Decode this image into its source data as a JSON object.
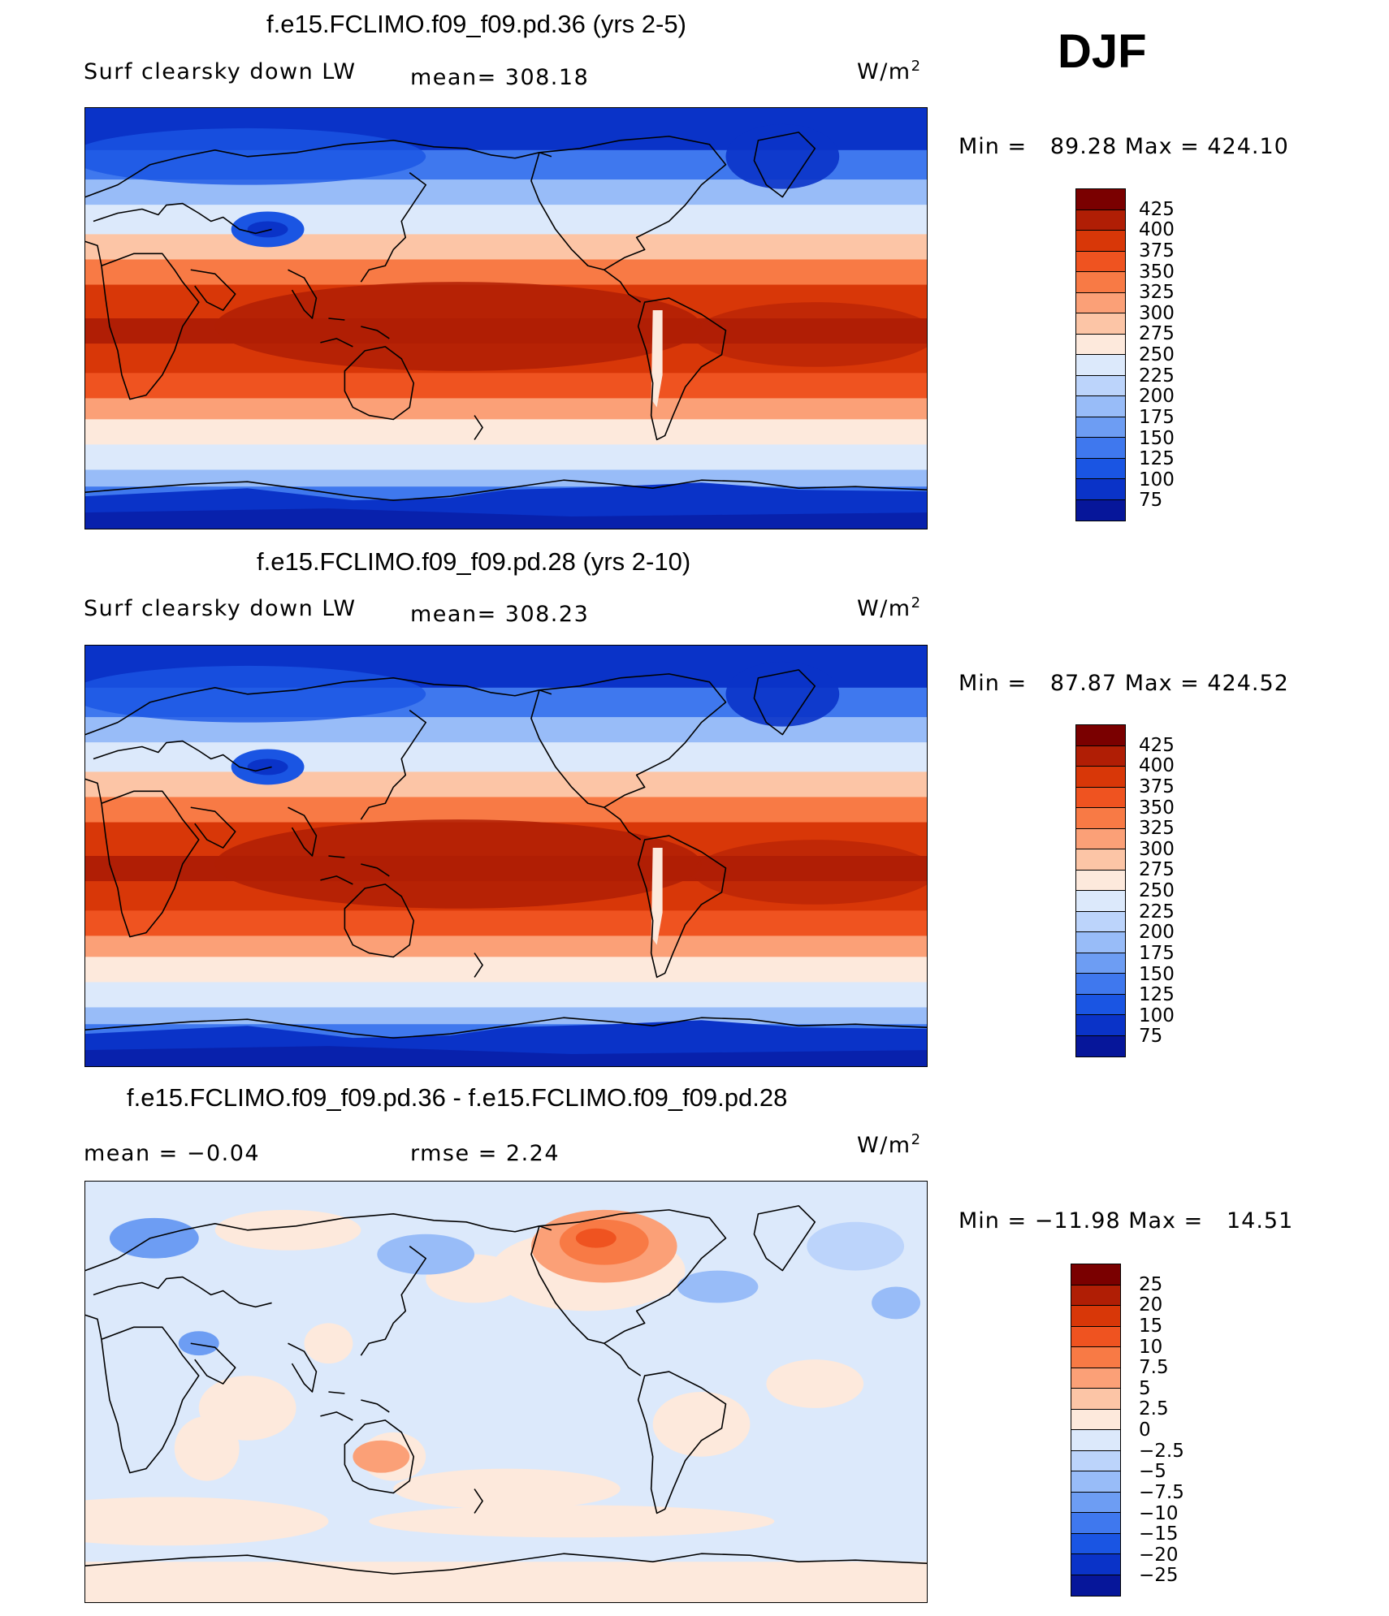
{
  "season": "DJF",
  "units": "W/m",
  "units_sup": "2",
  "panels": [
    {
      "title": "f.e15.FCLIMO.f09_f09.pd.36 (yrs 2-5)",
      "left_label": "Surf clearsky down LW",
      "center_label": "mean=  308.18",
      "minmax": "Min =   89.28 Max = 424.10",
      "levels": [
        "425",
        "400",
        "375",
        "350",
        "325",
        "300",
        "275",
        "250",
        "225",
        "200",
        "175",
        "150",
        "125",
        "100",
        "75"
      ],
      "colors": [
        "#7a0000",
        "#b01e05",
        "#d83708",
        "#ef5320",
        "#f87a45",
        "#fba077",
        "#fcc5a6",
        "#fde9dc",
        "#dce9fb",
        "#bcd4fb",
        "#98bcf8",
        "#6d9df3",
        "#3f78ee",
        "#1a55e3",
        "#0a33c8",
        "#06169a"
      ],
      "kind": "absolute"
    },
    {
      "title": "f.e15.FCLIMO.f09_f09.pd.28 (yrs 2-10)",
      "left_label": "Surf clearsky down LW",
      "center_label": "mean=  308.23",
      "minmax": "Min =   87.87 Max = 424.52",
      "levels": [
        "425",
        "400",
        "375",
        "350",
        "325",
        "300",
        "275",
        "250",
        "225",
        "200",
        "175",
        "150",
        "125",
        "100",
        "75"
      ],
      "colors": [
        "#7a0000",
        "#b01e05",
        "#d83708",
        "#ef5320",
        "#f87a45",
        "#fba077",
        "#fcc5a6",
        "#fde9dc",
        "#dce9fb",
        "#bcd4fb",
        "#98bcf8",
        "#6d9df3",
        "#3f78ee",
        "#1a55e3",
        "#0a33c8",
        "#06169a"
      ],
      "kind": "absolute"
    },
    {
      "title": "f.e15.FCLIMO.f09_f09.pd.36 - f.e15.FCLIMO.f09_f09.pd.28",
      "left_label": "mean =   −0.04",
      "center_label": "rmse =    2.24",
      "minmax": "Min = −11.98 Max =   14.51",
      "levels": [
        "25",
        "20",
        "15",
        "10",
        "7.5",
        "5",
        "2.5",
        "0",
        "−2.5",
        "−5",
        "−7.5",
        "−10",
        "−15",
        "−20",
        "−25"
      ],
      "colors": [
        "#7a0000",
        "#b01e05",
        "#d83708",
        "#ef5320",
        "#f87a45",
        "#fba077",
        "#fcc5a6",
        "#fde9dc",
        "#dce9fb",
        "#bcd4fb",
        "#98bcf8",
        "#6d9df3",
        "#3f78ee",
        "#1a55e3",
        "#0a33c8",
        "#06169a"
      ],
      "kind": "difference"
    }
  ]
}
